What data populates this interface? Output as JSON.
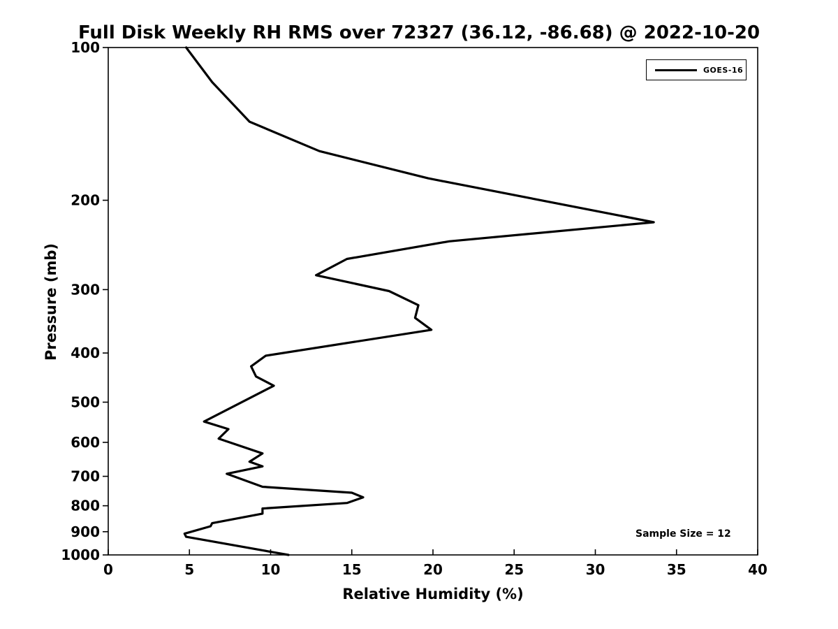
{
  "title": "Full Disk Weekly RH RMS over 72327 (36.12, -86.68) @ 2022-10-20",
  "annotation": "Sample Size = 12",
  "legend": {
    "entries": [
      {
        "label": "GOES-16",
        "color": "#000000"
      }
    ]
  },
  "colors": {
    "line": "#000000",
    "frame": "#000000",
    "background": "#ffffff",
    "text": "#000000"
  },
  "chart_data": {
    "type": "line",
    "title": "Full Disk Weekly RH RMS over 72327 (36.12, -86.68) @ 2022-10-20",
    "xlabel": "Relative Humidity (%)",
    "ylabel": "Pressure (mb)",
    "xlim": [
      0,
      40
    ],
    "x_ticks": [
      0,
      5,
      10,
      15,
      20,
      25,
      30,
      35,
      40
    ],
    "ylim": [
      100,
      1000
    ],
    "y_scale": "log",
    "y_inverted": true,
    "y_ticks": [
      100,
      200,
      300,
      400,
      500,
      600,
      700,
      800,
      900,
      1000
    ],
    "grid": false,
    "legend_position": "inside-top-right",
    "annotation": "Sample Size = 12",
    "series": [
      {
        "name": "GOES-16",
        "color": "#000000",
        "line_width": 3.2,
        "x_name": "rh_rms_percent",
        "y_name": "pressure_mb",
        "points": [
          [
            4.8,
            100
          ],
          [
            6.4,
            117
          ],
          [
            8.7,
            140
          ],
          [
            13.0,
            160
          ],
          [
            19.7,
            181
          ],
          [
            33.6,
            221
          ],
          [
            21.0,
            241
          ],
          [
            14.7,
            261
          ],
          [
            12.8,
            281
          ],
          [
            17.3,
            302
          ],
          [
            19.1,
            322
          ],
          [
            18.9,
            341
          ],
          [
            19.9,
            360
          ],
          [
            9.7,
            405
          ],
          [
            8.8,
            425
          ],
          [
            9.1,
            445
          ],
          [
            10.2,
            464
          ],
          [
            5.9,
            546
          ],
          [
            7.4,
            565
          ],
          [
            6.8,
            590
          ],
          [
            9.5,
            631
          ],
          [
            8.7,
            655
          ],
          [
            9.5,
            669
          ],
          [
            7.3,
            692
          ],
          [
            9.5,
            734
          ],
          [
            15.0,
            754
          ],
          [
            15.7,
            770
          ],
          [
            14.7,
            790
          ],
          [
            9.5,
            810
          ],
          [
            9.5,
            829
          ],
          [
            6.4,
            866
          ],
          [
            6.3,
            878
          ],
          [
            4.7,
            908
          ],
          [
            4.8,
            921
          ],
          [
            11.1,
            1000
          ]
        ]
      }
    ]
  }
}
